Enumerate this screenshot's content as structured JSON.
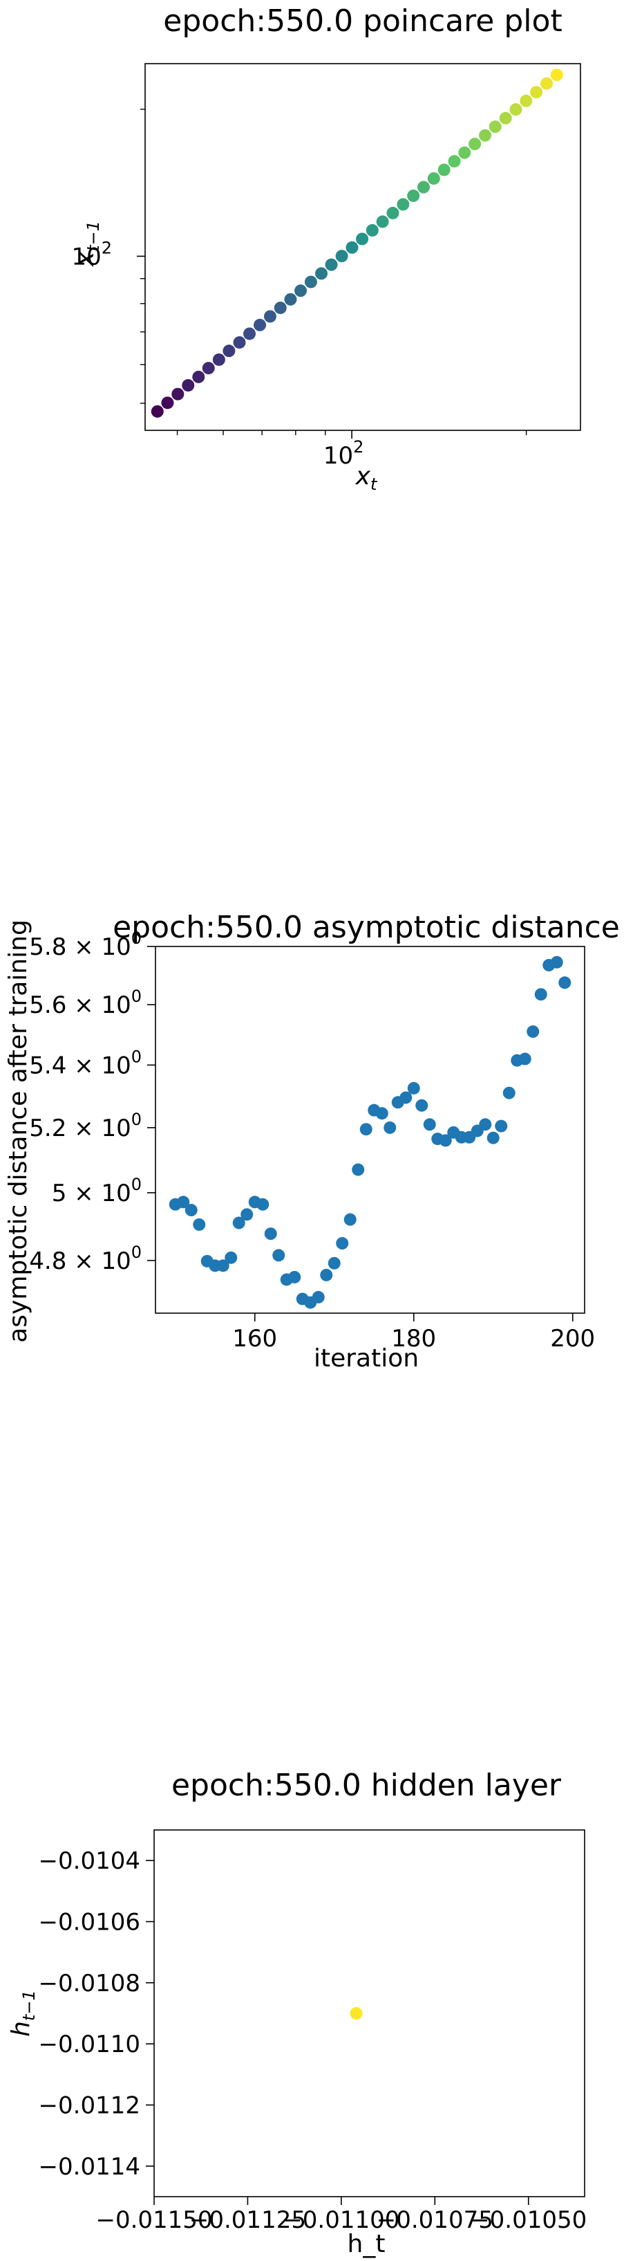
{
  "chart_data": [
    {
      "type": "scatter",
      "title": "epoch:550.0 poincare plot",
      "xlabel": "x_t",
      "ylabel": "x_{t-1}",
      "xscale": "log",
      "yscale": "log",
      "colormap": "viridis",
      "xtick_labels": [
        {
          "base": "10",
          "exp": "2",
          "value": 100
        }
      ],
      "ytick_labels": [
        {
          "base": "10",
          "exp": "2",
          "value": 100
        }
      ],
      "xlim": [
        44,
        248
      ],
      "ylim": [
        44,
        248
      ],
      "x": [
        46.2,
        48.1,
        50.1,
        52.2,
        54.4,
        56.6,
        59.0,
        61.4,
        64.0,
        66.6,
        69.4,
        72.3,
        75.3,
        78.4,
        81.6,
        85.0,
        88.6,
        92.2,
        96.1,
        100.1,
        104.2,
        108.5,
        113.0,
        117.7,
        122.6,
        127.7,
        133.0,
        138.5,
        144.3,
        150.3,
        156.5,
        163.0,
        169.8,
        176.8,
        184.2,
        191.8,
        199.8,
        208.1,
        216.8,
        225.8
      ],
      "y": [
        48.1,
        50.1,
        52.2,
        54.4,
        56.6,
        59.0,
        61.4,
        64.0,
        66.6,
        69.4,
        72.3,
        75.3,
        78.4,
        81.6,
        85.0,
        88.6,
        92.2,
        96.1,
        100.1,
        104.2,
        108.5,
        113.0,
        117.7,
        122.6,
        127.7,
        133.0,
        138.5,
        144.3,
        150.3,
        156.5,
        163.0,
        169.8,
        176.8,
        184.2,
        191.8,
        199.8,
        208.1,
        216.8,
        225.8,
        235.2
      ]
    },
    {
      "type": "scatter",
      "title": "epoch:550.0 asymptotic distance",
      "xlabel": "iteration",
      "ylabel": "asymptotic distance after training",
      "yscale": "log",
      "color": "#1f77b4",
      "xlim": [
        147.5,
        201.5
      ],
      "ylim": [
        4.65,
        5.8
      ],
      "xticks": [
        {
          "label": "160",
          "value": 160
        },
        {
          "label": "180",
          "value": 180
        },
        {
          "label": "200",
          "value": 200
        }
      ],
      "yticks": [
        {
          "mant": "4.8",
          "exp": "0",
          "value": 4.8
        },
        {
          "mant": "5",
          "exp": "0",
          "value": 5.0
        },
        {
          "mant": "5.2",
          "exp": "0",
          "value": 5.2
        },
        {
          "mant": "5.4",
          "exp": "0",
          "value": 5.4
        },
        {
          "mant": "5.6",
          "exp": "0",
          "value": 5.6
        },
        {
          "mant": "5.8",
          "exp": "0",
          "value": 5.8
        }
      ],
      "x": [
        150,
        151,
        152,
        153,
        154,
        155,
        156,
        157,
        158,
        159,
        160,
        161,
        162,
        163,
        164,
        165,
        166,
        167,
        168,
        169,
        170,
        171,
        172,
        173,
        174,
        175,
        176,
        177,
        178,
        179,
        180,
        181,
        182,
        183,
        184,
        185,
        186,
        187,
        188,
        189,
        190,
        191,
        192,
        193,
        194,
        195,
        196,
        197,
        198,
        199
      ],
      "y": [
        4.965,
        4.972,
        4.948,
        4.905,
        4.798,
        4.785,
        4.785,
        4.808,
        4.91,
        4.935,
        4.972,
        4.965,
        4.878,
        4.815,
        4.745,
        4.752,
        4.69,
        4.68,
        4.695,
        4.758,
        4.792,
        4.85,
        4.92,
        5.07,
        5.195,
        5.255,
        5.245,
        5.2,
        5.28,
        5.295,
        5.325,
        5.27,
        5.21,
        5.165,
        5.16,
        5.185,
        5.17,
        5.17,
        5.19,
        5.21,
        5.168,
        5.205,
        5.31,
        5.415,
        5.42,
        5.51,
        5.635,
        5.735,
        5.745,
        5.675
      ]
    },
    {
      "type": "scatter",
      "title": "epoch:550.0 hidden layer",
      "xlabel": "h_t",
      "ylabel": "h_{t-1}",
      "color": "#fde725",
      "xlim": [
        -0.0115,
        -0.01035
      ],
      "ylim": [
        -0.0115,
        -0.0103
      ],
      "xticks": [
        {
          "label": "−0.01150",
          "value": -0.0115
        },
        {
          "label": "−0.01125",
          "value": -0.01125
        },
        {
          "label": "−0.01100",
          "value": -0.011
        },
        {
          "label": "−0.01075",
          "value": -0.01075
        },
        {
          "label": "−0.01050",
          "value": -0.0105
        }
      ],
      "yticks": [
        {
          "label": "−0.0104",
          "value": -0.0104
        },
        {
          "label": "−0.0106",
          "value": -0.0106
        },
        {
          "label": "−0.0108",
          "value": -0.0108
        },
        {
          "label": "−0.0110",
          "value": -0.011
        },
        {
          "label": "−0.0112",
          "value": -0.0112
        },
        {
          "label": "−0.0114",
          "value": -0.0114
        }
      ],
      "x": [
        -0.01096
      ],
      "y": [
        -0.0109
      ]
    }
  ]
}
